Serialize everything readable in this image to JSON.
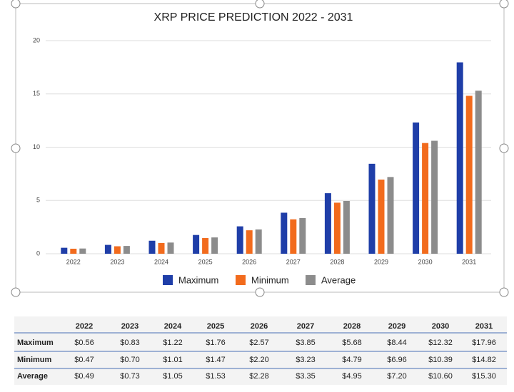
{
  "chart_data": {
    "type": "bar",
    "title": "XRP PRICE PREDICTION 2022 - 2031",
    "categories": [
      "2022",
      "2023",
      "2024",
      "2025",
      "2026",
      "2027",
      "2028",
      "2029",
      "2030",
      "2031"
    ],
    "series": [
      {
        "name": "Maximum",
        "color": "#1f3ea8",
        "values": [
          0.56,
          0.83,
          1.22,
          1.76,
          2.57,
          3.85,
          5.68,
          8.44,
          12.32,
          17.96
        ]
      },
      {
        "name": "Minimum",
        "color": "#f26b1d",
        "values": [
          0.47,
          0.7,
          1.01,
          1.47,
          2.2,
          3.23,
          4.79,
          6.96,
          10.39,
          14.82
        ]
      },
      {
        "name": "Average",
        "color": "#8c8c8c",
        "values": [
          0.49,
          0.73,
          1.05,
          1.53,
          2.28,
          3.35,
          4.95,
          7.2,
          10.6,
          15.3
        ]
      }
    ],
    "ylim": [
      0,
      20
    ],
    "yticks": [
      0,
      5,
      10,
      15,
      20
    ],
    "grid": true,
    "legend": "bottom"
  },
  "table": {
    "rows": [
      [
        "$0.56",
        "$0.83",
        "$1.22",
        "$1.76",
        "$2.57",
        "$3.85",
        "$5.68",
        "$8.44",
        "$12.32",
        "$17.96"
      ],
      [
        "$0.47",
        "$0.70",
        "$1.01",
        "$1.47",
        "$2.20",
        "$3.23",
        "$4.79",
        "$6.96",
        "$10.39",
        "$14.82"
      ],
      [
        "$0.49",
        "$0.73",
        "$1.05",
        "$1.53",
        "$2.28",
        "$3.35",
        "$4.95",
        "$7.20",
        "$10.60",
        "$15.30"
      ]
    ]
  }
}
